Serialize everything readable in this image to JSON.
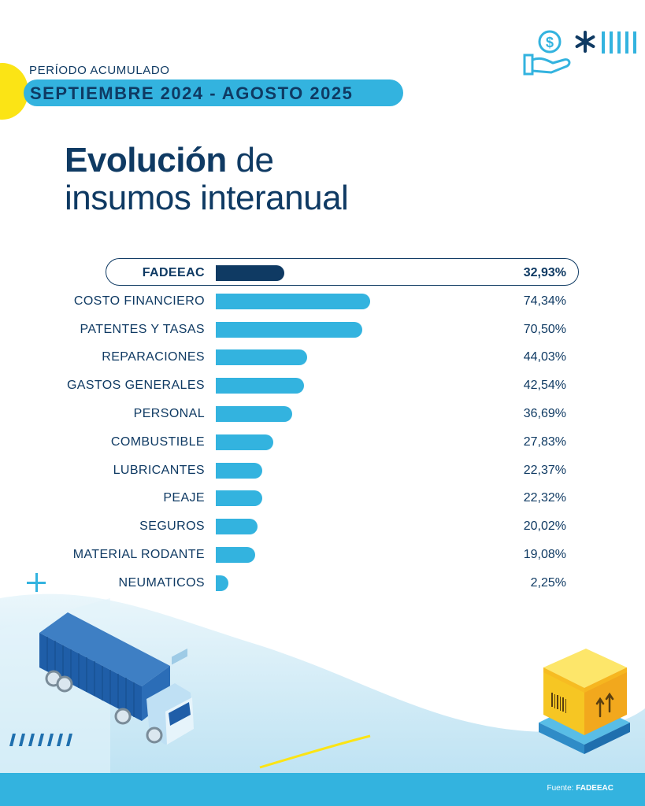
{
  "header": {
    "period_label": "PERÍODO ACUMULADO",
    "period_value": "SEPTIEMBRE 2024 - AGOSTO 2025",
    "title_bold": "Evolución",
    "title_rest": " de",
    "title_line2": "insumos interanual"
  },
  "chart_data": {
    "type": "bar",
    "orientation": "horizontal",
    "categories": [
      "FADEEAC",
      "COSTO FINANCIERO",
      "PATENTES Y TASAS",
      "REPARACIONES",
      "GASTOS GENERALES",
      "PERSONAL",
      "COMBUSTIBLE",
      "LUBRICANTES",
      "PEAJE",
      "SEGUROS",
      "MATERIAL RODANTE",
      "NEUMATICOS"
    ],
    "values": [
      32.93,
      74.34,
      70.5,
      44.03,
      42.54,
      36.69,
      27.83,
      22.37,
      22.32,
      20.02,
      19.08,
      2.25
    ],
    "value_labels": [
      "32,93%",
      "74,34%",
      "70,50%",
      "44,03%",
      "42,54%",
      "36,69%",
      "27,83%",
      "22,37%",
      "22,32%",
      "20,02%",
      "19,08%",
      "2,25%"
    ],
    "highlight_index": 0,
    "colors": {
      "highlight": "#0f3a63",
      "default": "#33b3df"
    }
  },
  "footer": {
    "source_label": "Fuente: ",
    "source_value": "FADEEAC"
  },
  "icons": [
    "dollar-hand-icon",
    "asterisk-icon",
    "plus-icon",
    "truck-illustration",
    "box-pallet-illustration"
  ],
  "colors": {
    "navy": "#0f3a63",
    "cyan": "#33b3df",
    "yellow": "#fbe415"
  }
}
